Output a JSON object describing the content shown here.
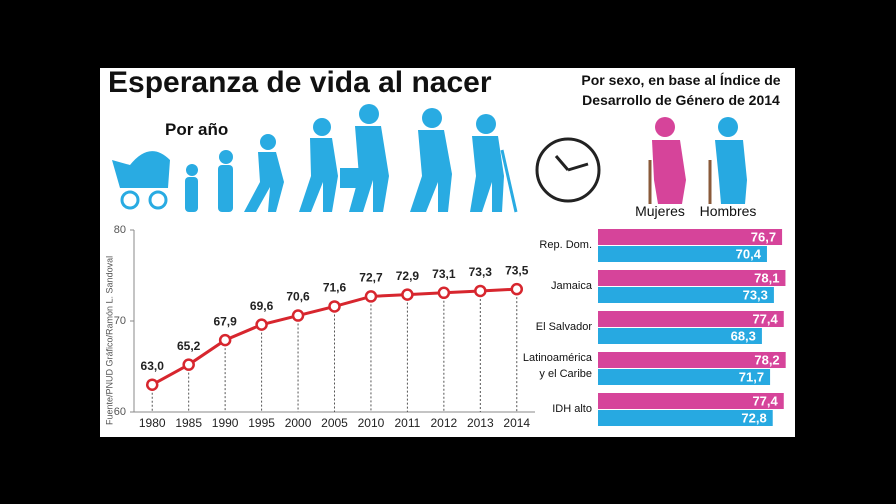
{
  "header": {
    "title": "Esperanza de vida al nacer"
  },
  "chart_data": [
    {
      "type": "line",
      "subtitle": "Por año",
      "source": "Fuente/PNUD  Gráfico/Ramón L. Sandoval",
      "categories": [
        "1980",
        "1985",
        "1990",
        "1995",
        "2000",
        "2005",
        "2010",
        "2011",
        "2012",
        "2013",
        "2014"
      ],
      "values": [
        63.0,
        65.2,
        67.9,
        69.6,
        70.6,
        71.6,
        72.7,
        72.9,
        73.1,
        73.3,
        73.5
      ],
      "value_labels": [
        "63,0",
        "65,2",
        "67,9",
        "69,6",
        "70,6",
        "71,6",
        "72,7",
        "72,9",
        "73,1",
        "73,3",
        "73,5"
      ],
      "color": "#d7262e",
      "ylim": [
        60,
        80
      ],
      "yticks": [
        60,
        70,
        80
      ],
      "grid": false
    },
    {
      "type": "hbar",
      "title": "Por sexo, en base al Índice de Desarrollo de Género de 2014",
      "categories": [
        "Rep. Dom.",
        "Jamaica",
        "El Salvador",
        "Latinoamérica y el Caribe",
        "IDH alto"
      ],
      "series": [
        {
          "name": "Mujeres",
          "color": "#d6449a",
          "values": [
            76.7,
            78.1,
            77.4,
            78.2,
            77.4
          ],
          "value_labels": [
            "76,7",
            "78,1",
            "77,4",
            "78,2",
            "77,4"
          ]
        },
        {
          "name": "Hombres",
          "color": "#27a9e1",
          "values": [
            70.4,
            73.3,
            68.3,
            71.7,
            72.8
          ],
          "value_labels": [
            "70,4",
            "73,3",
            "68,3",
            "71,7",
            "72,8"
          ]
        }
      ],
      "xlim": [
        0,
        80
      ]
    }
  ]
}
